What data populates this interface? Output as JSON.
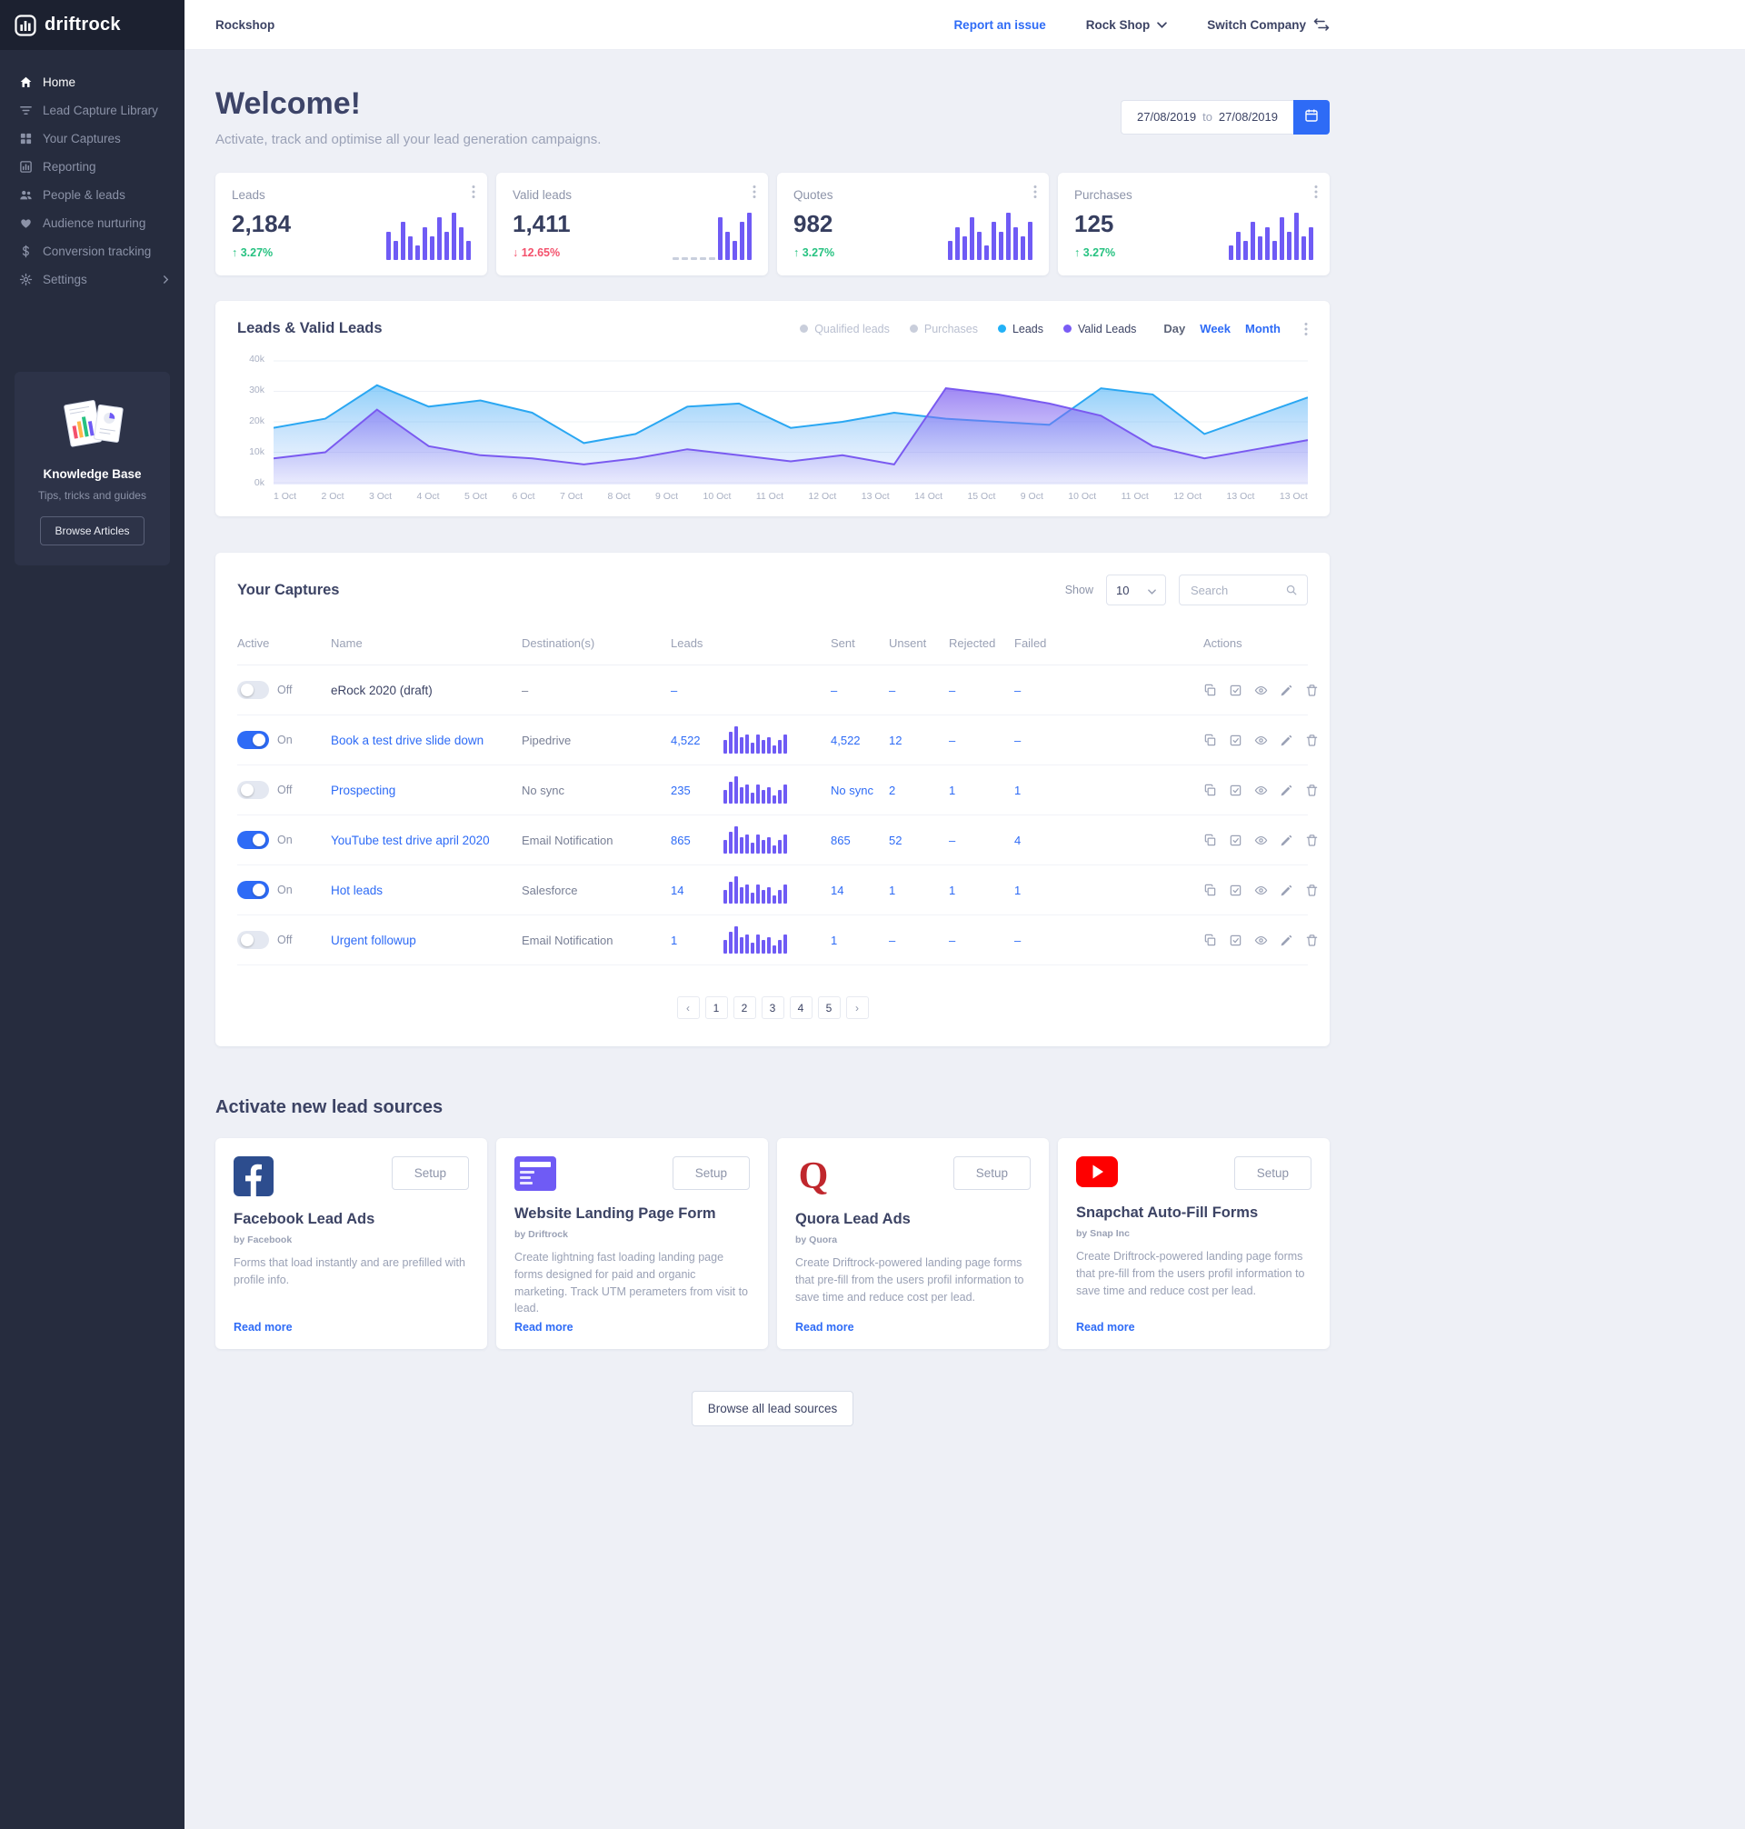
{
  "brand": {
    "name": "driftrock"
  },
  "colors": {
    "accent": "#2e6bf6",
    "bar_purple": "#6f5bf5",
    "series_blue": "#2aa7f2",
    "series_purple": "#7a5af0",
    "up_green": "#27c281",
    "down_red": "#f4516c"
  },
  "topbar": {
    "workspace": "Rockshop",
    "report_issue": "Report an issue",
    "company": "Rock Shop",
    "switch_company": "Switch Company"
  },
  "sidebar": {
    "items": [
      {
        "id": "home",
        "label": "Home",
        "icon": "home",
        "active": true
      },
      {
        "id": "lead-capture-library",
        "label": "Lead Capture Library",
        "icon": "filter",
        "active": false
      },
      {
        "id": "your-captures",
        "label": "Your Captures",
        "icon": "grid",
        "active": false
      },
      {
        "id": "reporting",
        "label": "Reporting",
        "icon": "chart",
        "active": false
      },
      {
        "id": "people-leads",
        "label": "People & leads",
        "icon": "people",
        "active": false
      },
      {
        "id": "audience-nurturing",
        "label": "Audience nurturing",
        "icon": "heart",
        "active": false
      },
      {
        "id": "conversion-tracking",
        "label": "Conversion tracking",
        "icon": "dollar",
        "active": false
      },
      {
        "id": "settings",
        "label": "Settings",
        "icon": "gear",
        "active": false,
        "chevron": true
      }
    ],
    "kb": {
      "title": "Knowledge Base",
      "subtitle": "Tips, tricks and guides",
      "button": "Browse Articles"
    }
  },
  "header": {
    "title": "Welcome!",
    "subtitle": "Activate, track and optimise all your lead generation campaigns.",
    "date_from": "27/08/2019",
    "date_join": "to",
    "date_to": "27/08/2019"
  },
  "stats": [
    {
      "label": "Leads",
      "value": "2,184",
      "delta": "3.27%",
      "direction": "up",
      "bars": [
        6,
        4,
        8,
        5,
        3,
        7,
        5,
        9,
        6,
        10,
        7,
        4
      ]
    },
    {
      "label": "Valid leads",
      "value": "1,411",
      "delta": "12.65%",
      "direction": "down",
      "bars": [
        0,
        0,
        0,
        0,
        0,
        9,
        6,
        4,
        8,
        10
      ]
    },
    {
      "label": "Quotes",
      "value": "982",
      "delta": "3.27%",
      "direction": "up",
      "bars": [
        4,
        7,
        5,
        9,
        6,
        3,
        8,
        6,
        10,
        7,
        5,
        8
      ]
    },
    {
      "label": "Purchases",
      "value": "125",
      "delta": "3.27%",
      "direction": "up",
      "bars": [
        3,
        6,
        4,
        8,
        5,
        7,
        4,
        9,
        6,
        10,
        5,
        7
      ]
    }
  ],
  "chart": {
    "title": "Leads & Valid Leads",
    "legend": [
      {
        "label": "Qualified leads",
        "color": "#c9cedb",
        "active": false
      },
      {
        "label": "Purchases",
        "color": "#c9cedb",
        "active": false
      },
      {
        "label": "Leads",
        "color": "#22b1f7",
        "active": true
      },
      {
        "label": "Valid Leads",
        "color": "#7a5cf5",
        "active": true
      }
    ],
    "ranges": [
      {
        "label": "Day",
        "current": true
      },
      {
        "label": "Week",
        "current": false
      },
      {
        "label": "Month",
        "current": false
      }
    ],
    "chart_data": {
      "type": "area",
      "x": [
        "1 Oct",
        "2 Oct",
        "3 Oct",
        "4 Oct",
        "5 Oct",
        "6 Oct",
        "7 Oct",
        "8 Oct",
        "9 Oct",
        "10 Oct",
        "11 Oct",
        "12 Oct",
        "13 Oct",
        "14 Oct",
        "15 Oct",
        "9 Oct",
        "10 Oct",
        "11 Oct",
        "12 Oct",
        "13 Oct",
        "13 Oct"
      ],
      "series": [
        {
          "name": "Leads",
          "values": [
            18,
            21,
            32,
            25,
            27,
            23,
            13,
            16,
            25,
            26,
            18,
            20,
            23,
            21,
            20,
            19,
            31,
            29,
            16,
            22,
            28
          ]
        },
        {
          "name": "Valid Leads",
          "values": [
            8,
            10,
            24,
            12,
            9,
            8,
            6,
            8,
            11,
            9,
            7,
            9,
            6,
            31,
            29,
            26,
            22,
            12,
            8,
            11,
            14
          ]
        }
      ],
      "unit": "thousands",
      "ylim": [
        0,
        40
      ],
      "yticks": [
        "0k",
        "10k",
        "20k",
        "30k",
        "40k"
      ],
      "grid": true,
      "legend_position": "top-right"
    }
  },
  "captures": {
    "title": "Your Captures",
    "show_label": "Show",
    "show_value": "10",
    "search_placeholder": "Search",
    "columns": [
      "Active",
      "Name",
      "Destination(s)",
      "Leads",
      "Sent",
      "Unsent",
      "Rejected",
      "Failed",
      "Actions"
    ],
    "row_chart_bars": [
      5,
      8,
      10,
      6,
      7,
      4,
      7,
      5,
      6,
      3,
      5,
      7
    ],
    "rows": [
      {
        "active": false,
        "state": "Off",
        "name": "eRock 2020 (draft)",
        "draft": true,
        "destination": "–",
        "leads": "–",
        "chart": false,
        "sent": "–",
        "unsent": "–",
        "rejected": "–",
        "failed": "–"
      },
      {
        "active": true,
        "state": "On",
        "name": "Book a test drive slide down",
        "draft": false,
        "destination": "Pipedrive",
        "leads": "4,522",
        "chart": true,
        "sent": "4,522",
        "unsent": "12",
        "rejected": "–",
        "failed": "–"
      },
      {
        "active": false,
        "state": "Off",
        "name": "Prospecting",
        "draft": false,
        "destination": "No sync",
        "leads": "235",
        "chart": true,
        "sent": "No sync",
        "unsent": "2",
        "rejected": "1",
        "failed": "1"
      },
      {
        "active": true,
        "state": "On",
        "name": "YouTube test drive april 2020",
        "draft": false,
        "destination": "Email Notification",
        "leads": "865",
        "chart": true,
        "sent": "865",
        "unsent": "52",
        "rejected": "–",
        "failed": "4"
      },
      {
        "active": true,
        "state": "On",
        "name": "Hot leads",
        "draft": false,
        "destination": "Salesforce",
        "leads": "14",
        "chart": true,
        "sent": "14",
        "unsent": "1",
        "rejected": "1",
        "failed": "1"
      },
      {
        "active": false,
        "state": "Off",
        "name": "Urgent followup",
        "draft": false,
        "destination": "Email Notification",
        "leads": "1",
        "chart": true,
        "sent": "1",
        "unsent": "–",
        "rejected": "–",
        "failed": "–"
      }
    ],
    "pagination": {
      "prev": "‹",
      "pages": [
        "1",
        "2",
        "3",
        "4",
        "5"
      ],
      "next": "›"
    }
  },
  "sources": {
    "title": "Activate new lead sources",
    "cards": [
      {
        "id": "facebook-lead-ads",
        "icon": "facebook",
        "setup": "Setup",
        "title": "Facebook Lead Ads",
        "by": "by Facebook",
        "desc": "Forms that load instantly and are prefilled with profile info.",
        "read_more": "Read more"
      },
      {
        "id": "website-landing-page-form",
        "icon": "landing",
        "setup": "Setup",
        "title": "Website Landing Page Form",
        "by": "by Driftrock",
        "desc": "Create lightning fast loading landing page forms designed for paid and organic marketing. Track UTM perameters from visit to lead.",
        "read_more": "Read more"
      },
      {
        "id": "quora-lead-ads",
        "icon": "quora",
        "setup": "Setup",
        "title": "Quora Lead Ads",
        "by": "by Quora",
        "desc": "Create Driftrock-powered landing page forms that pre-fill from the users profil information to save time and reduce cost per lead.",
        "read_more": "Read more"
      },
      {
        "id": "snapchat-auto-fill-forms",
        "icon": "play",
        "setup": "Setup",
        "title": "Snapchat Auto-Fill Forms",
        "by": "by Snap Inc",
        "desc": "Create Driftrock-powered landing page forms that pre-fill from the users profil information to save time and reduce cost per lead.",
        "read_more": "Read more"
      }
    ],
    "browse_all": "Browse  all lead sources"
  }
}
